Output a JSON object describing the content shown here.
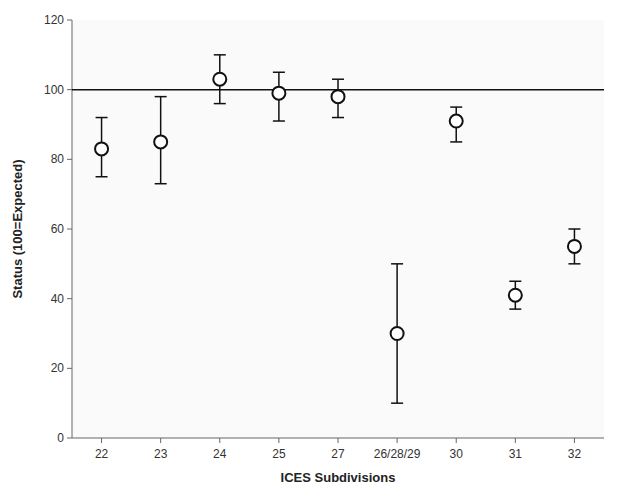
{
  "chart_data": {
    "type": "errorbar",
    "xlabel": "ICES Subdivisions",
    "ylabel": "Status (100=Expected)",
    "categories": [
      "22",
      "23",
      "24",
      "25",
      "27",
      "26/28/29",
      "30",
      "31",
      "32"
    ],
    "values": [
      83,
      85,
      103,
      99,
      98,
      30,
      91,
      41,
      55
    ],
    "error_upper": [
      9,
      13,
      7,
      6,
      5,
      20,
      4,
      4,
      5
    ],
    "error_lower": [
      8,
      12,
      7,
      8,
      6,
      20,
      6,
      4,
      5
    ],
    "reference_line": 100,
    "ylim": [
      0,
      120
    ],
    "yticks": [
      0,
      20,
      40,
      60,
      80,
      100,
      120
    ],
    "color": "#111111",
    "marker": "circle",
    "grid": false
  }
}
